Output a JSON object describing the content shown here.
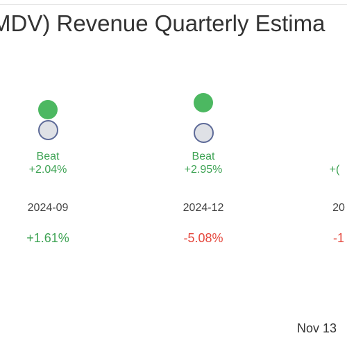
{
  "chart_data": {
    "type": "scatter",
    "title": "MDV) Revenue Quarterly Estima",
    "quarters": [
      {
        "period": "2024-09",
        "verdict": "Beat",
        "surprise": "+2.04%",
        "change": "+1.61%",
        "change_direction": "positive"
      },
      {
        "period": "2024-12",
        "verdict": "Beat",
        "surprise": "+2.95%",
        "change": "-5.08%",
        "change_direction": "negative"
      },
      {
        "period": "20",
        "verdict": "",
        "surprise": "+(",
        "change": "-1",
        "change_direction": "negative"
      }
    ],
    "legend_markers": {
      "actual": "filled green circle",
      "estimate": "hollow grey circle"
    }
  },
  "footer": {
    "date_stamp": "Nov 13"
  },
  "colors": {
    "beat_green": "#4cb861",
    "text_green": "#3ea354",
    "negative_red": "#e5483e",
    "estimate_fill": "#dfe1e6",
    "estimate_stroke": "#5d6a98",
    "title_text": "#333333"
  }
}
